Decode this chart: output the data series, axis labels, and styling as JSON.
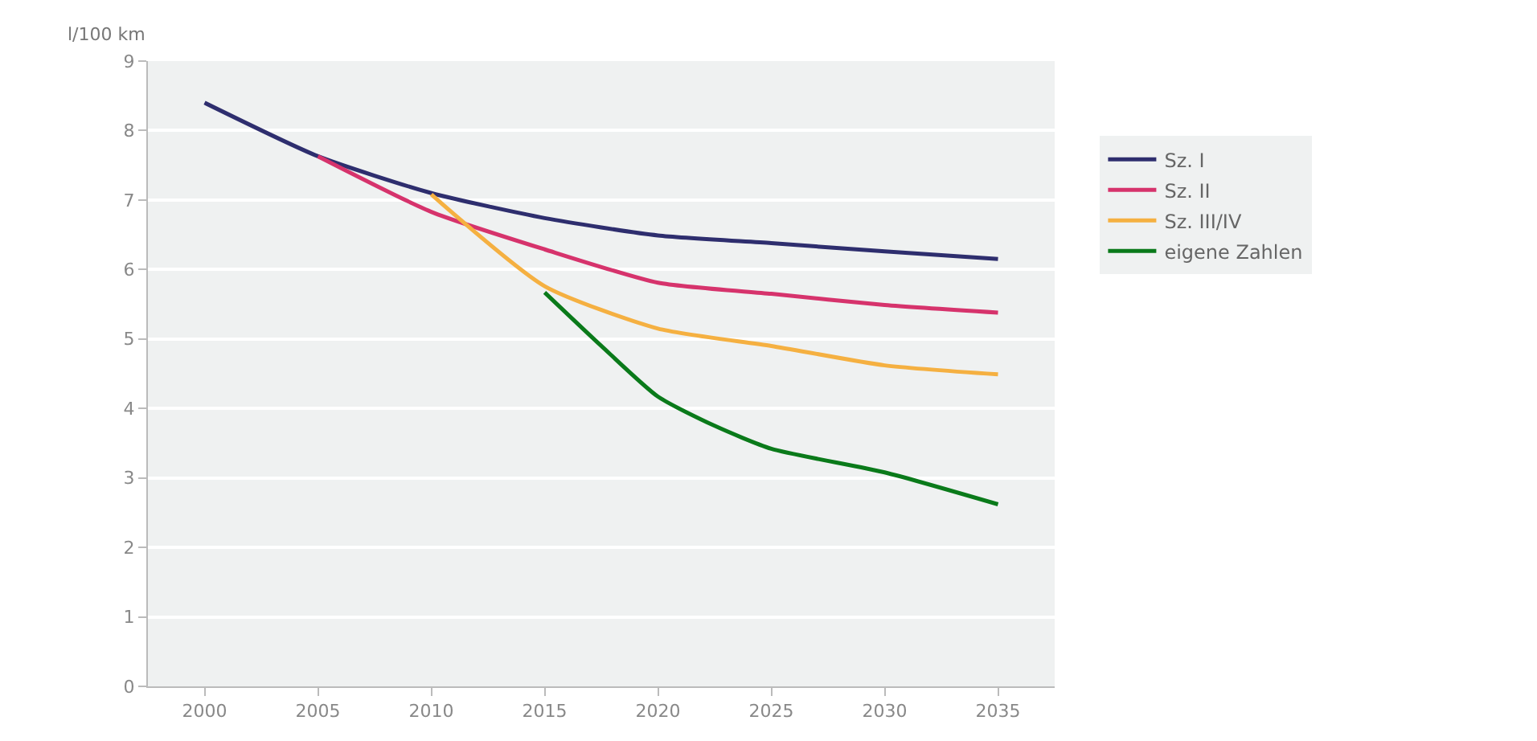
{
  "chart_data": {
    "type": "line",
    "ylabel": "l/100 km",
    "xlim": [
      1997.5,
      2037.5
    ],
    "xticks": [
      2000,
      2005,
      2010,
      2015,
      2020,
      2025,
      2030,
      2035
    ],
    "ylim": [
      0,
      9
    ],
    "yticks": [
      0,
      1,
      2,
      3,
      4,
      5,
      6,
      7,
      8,
      9
    ],
    "grid": "y",
    "legend": "top right",
    "marker": "none",
    "line_style": "solid",
    "series": [
      {
        "name": "Sz. I",
        "color": "#2e2e6e",
        "x": [
          2000,
          2005,
          2010,
          2015,
          2020,
          2025,
          2030,
          2035
        ],
        "values": [
          8.4,
          7.63,
          7.1,
          6.74,
          6.49,
          6.38,
          6.26,
          6.15
        ]
      },
      {
        "name": "Sz. II",
        "color": "#d6336c",
        "x": [
          2005,
          2010,
          2015,
          2020,
          2025,
          2030,
          2035
        ],
        "values": [
          7.63,
          6.83,
          6.29,
          5.81,
          5.65,
          5.49,
          5.38
        ]
      },
      {
        "name": "Sz. III/IV",
        "color": "#f5b041",
        "x": [
          2010,
          2015,
          2020,
          2025,
          2030,
          2035
        ],
        "values": [
          7.08,
          5.76,
          5.15,
          4.9,
          4.62,
          4.49
        ]
      },
      {
        "name": "eigene Zahlen",
        "color": "#0a7a1a",
        "x": [
          2015,
          2017.5,
          2020,
          2022.5,
          2025,
          2030,
          2035
        ],
        "values": [
          5.67,
          4.9,
          4.17,
          3.75,
          3.42,
          3.08,
          2.62
        ]
      }
    ]
  }
}
